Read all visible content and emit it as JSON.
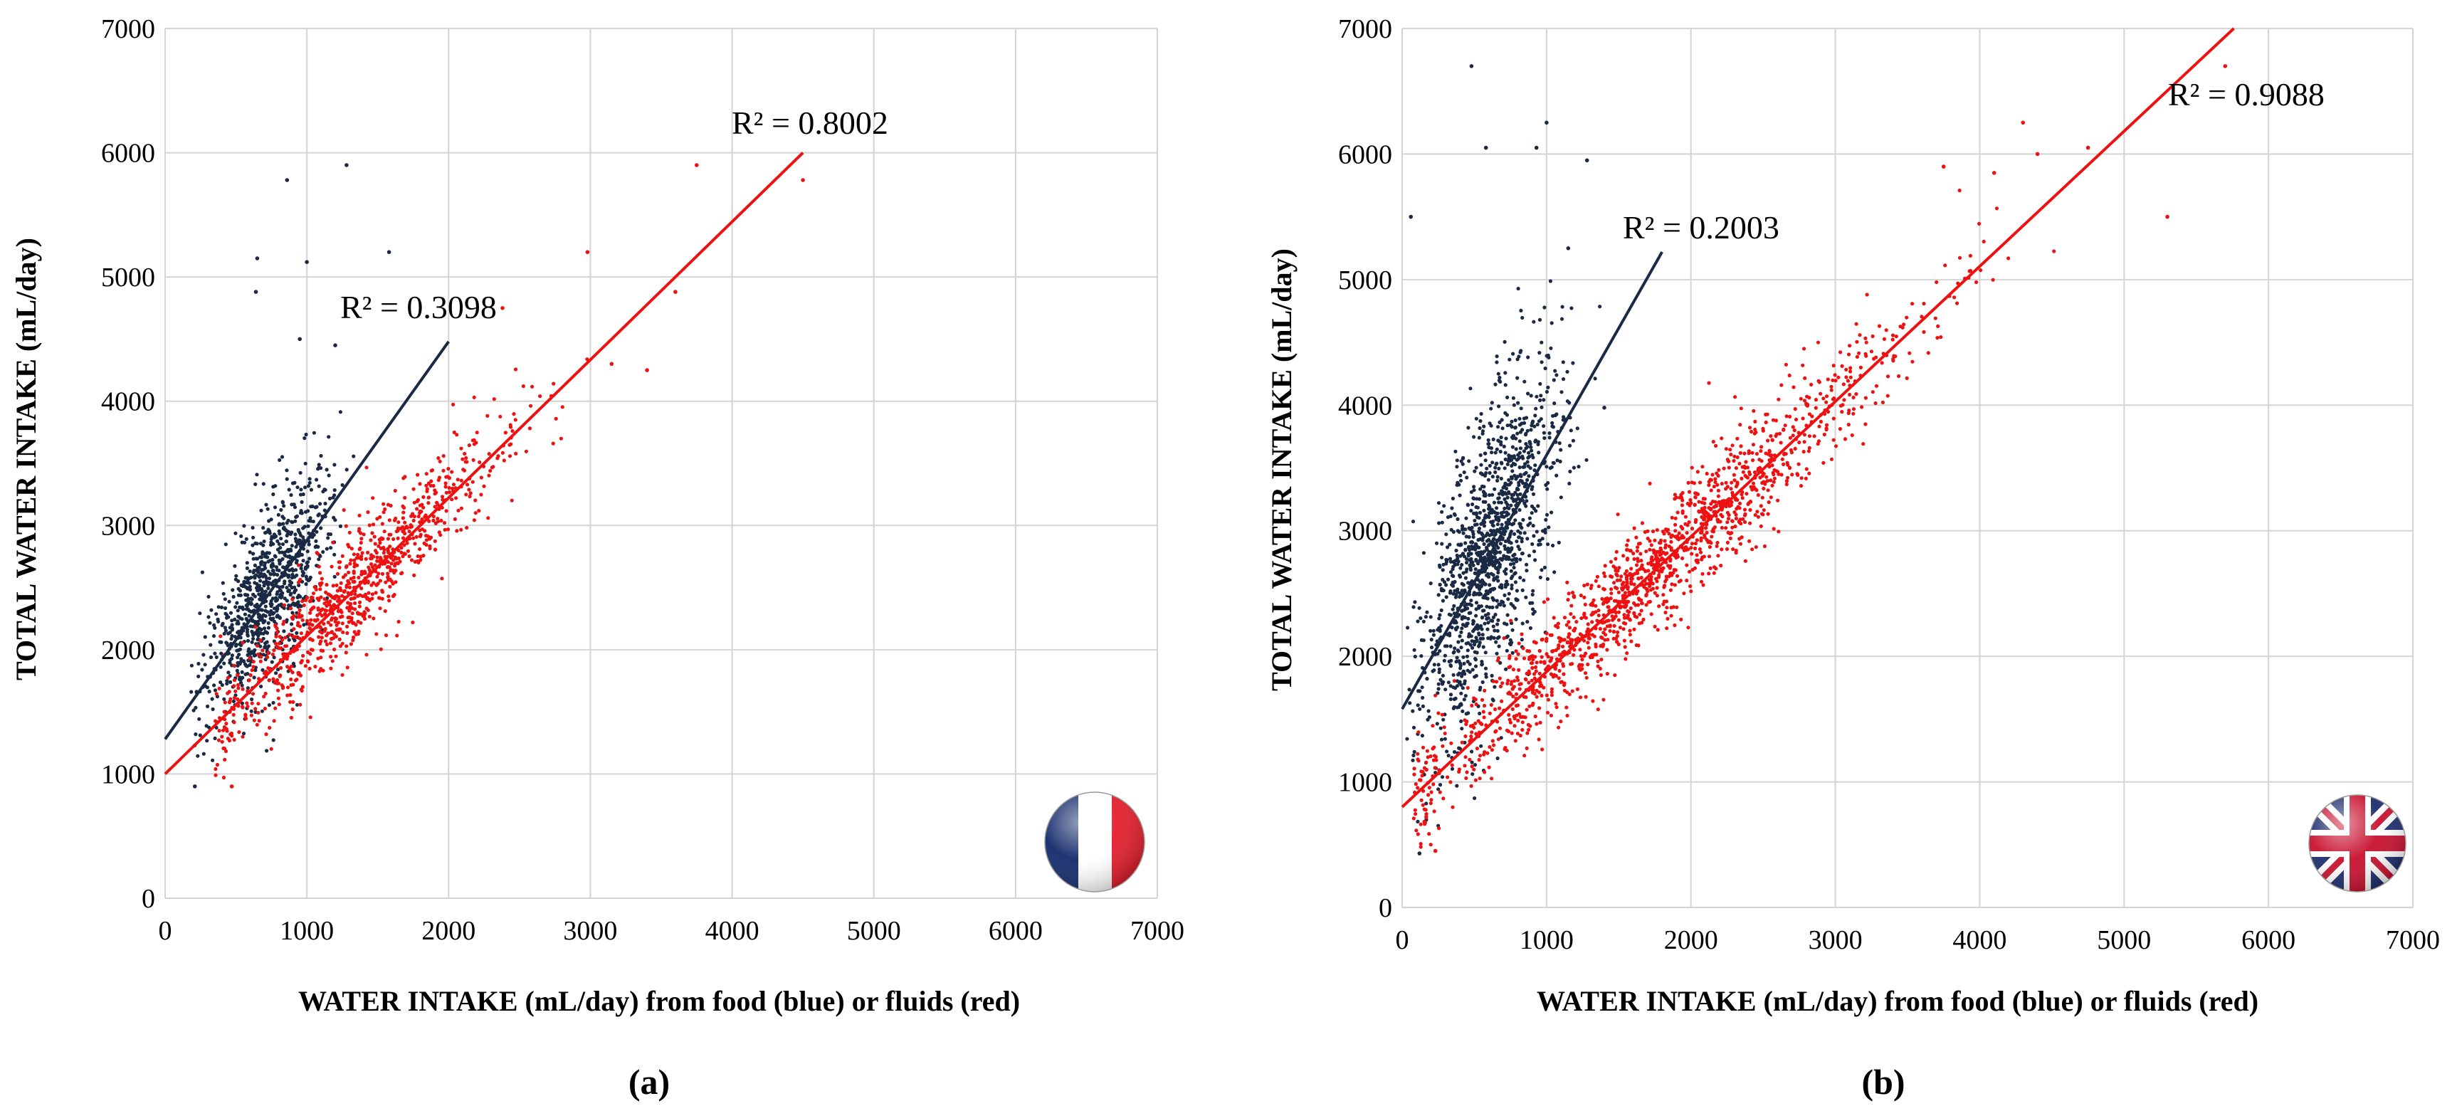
{
  "figure": {
    "panels": [
      {
        "label": "(a)",
        "flag": "france-flag"
      },
      {
        "label": "(b)",
        "flag": "uk-flag"
      }
    ],
    "colors": {
      "food": "#1a2a44",
      "fluids": "#ee1111",
      "grid": "#d4d4d4"
    }
  },
  "chart_data": [
    {
      "type": "scatter",
      "panel": "(a)",
      "xlabel": "WATER INTAKE (mL/day) from food (blue) or fluids (red)",
      "ylabel": "TOTAL WATER INTAKE (mL/day)",
      "xlim": [
        0,
        7000
      ],
      "ylim": [
        0,
        7000
      ],
      "xticks": [
        0,
        1000,
        2000,
        3000,
        4000,
        5000,
        6000,
        7000
      ],
      "yticks": [
        0,
        1000,
        2000,
        3000,
        4000,
        5000,
        6000,
        7000
      ],
      "grid": true,
      "series": [
        {
          "name": "food (blue)",
          "color": "#1a2a44",
          "point_count": 900,
          "x_center": 720,
          "x_spread": 220,
          "y_intercept": 1280,
          "slope": 1.6,
          "y_noise": 400,
          "x_min": 180,
          "x_max": 1400,
          "trendline": {
            "x": [
              0,
              2000
            ],
            "y": [
              1280,
              4480
            ]
          },
          "r_squared_label": "R² = 0.3098",
          "outliers": [
            [
              860,
              5780
            ],
            [
              1280,
              5900
            ],
            [
              1000,
              5120
            ],
            [
              650,
              5150
            ],
            [
              1580,
              5200
            ],
            [
              640,
              4880
            ],
            [
              950,
              4500
            ],
            [
              1200,
              4450
            ],
            [
              210,
              900
            ]
          ]
        },
        {
          "name": "fluids (red)",
          "color": "#ee1111",
          "point_count": 900,
          "x_center": 1350,
          "x_spread": 520,
          "y_intercept": 1000,
          "slope": 1.111,
          "y_noise": 260,
          "x_min": 350,
          "x_max": 3600,
          "trendline": {
            "x": [
              0,
              4500
            ],
            "y": [
              1000,
              6000
            ]
          },
          "r_squared_label": "R² = 0.8002",
          "outliers": [
            [
              3750,
              5900
            ],
            [
              4500,
              5780
            ],
            [
              2980,
              5200
            ],
            [
              3600,
              4880
            ],
            [
              2380,
              4750
            ],
            [
              3150,
              4300
            ],
            [
              3400,
              4250
            ],
            [
              470,
              900
            ]
          ]
        }
      ]
    },
    {
      "type": "scatter",
      "panel": "(b)",
      "xlabel": "WATER INTAKE (mL/day) from food (blue) or fluids (red)",
      "ylabel": "TOTAL WATER INTAKE (mL/day)",
      "xlim": [
        0,
        7000
      ],
      "ylim": [
        0,
        7000
      ],
      "xticks": [
        0,
        1000,
        2000,
        3000,
        4000,
        5000,
        6000,
        7000
      ],
      "yticks": [
        0,
        1000,
        2000,
        3000,
        4000,
        5000,
        6000,
        7000
      ],
      "grid": true,
      "series": [
        {
          "name": "food (blue)",
          "color": "#1a2a44",
          "point_count": 1300,
          "x_center": 600,
          "x_spread": 230,
          "y_intercept": 1580,
          "slope": 2.0,
          "y_noise": 620,
          "x_min": 30,
          "x_max": 1450,
          "trendline": {
            "x": [
              0,
              1800
            ],
            "y": [
              1580,
              5220
            ]
          },
          "r_squared_label": "R² = 0.2003",
          "outliers": [
            [
              480,
              6700
            ],
            [
              1000,
              6250
            ],
            [
              580,
              6050
            ],
            [
              930,
              6050
            ],
            [
              1280,
              5950
            ],
            [
              60,
              5500
            ],
            [
              1150,
              5250
            ],
            [
              120,
              430
            ],
            [
              1400,
              3980
            ]
          ]
        },
        {
          "name": "fluids (red)",
          "color": "#ee1111",
          "point_count": 1500,
          "x_center": 1700,
          "x_spread": 850,
          "y_intercept": 800,
          "slope": 1.077,
          "y_noise": 260,
          "x_min": 80,
          "x_max": 5000,
          "trendline": {
            "x": [
              0,
              5760
            ],
            "y": [
              800,
              7000
            ]
          },
          "r_squared_label": "R² = 0.9088",
          "outliers": [
            [
              5700,
              6700
            ],
            [
              4300,
              6250
            ],
            [
              4750,
              6050
            ],
            [
              5300,
              5500
            ],
            [
              4400,
              6000
            ],
            [
              3750,
              5900
            ],
            [
              230,
              450
            ],
            [
              4100,
              5850
            ]
          ]
        }
      ]
    }
  ]
}
